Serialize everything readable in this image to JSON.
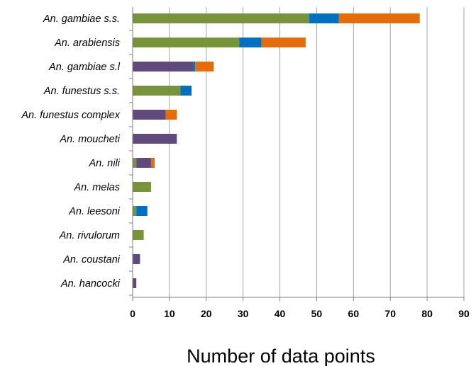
{
  "chart_data": {
    "type": "bar",
    "orientation": "horizontal",
    "stacked": true,
    "title": "",
    "xlabel": "Number of data points",
    "ylabel": "",
    "xlim": [
      0,
      90
    ],
    "x_ticks": [
      0,
      10,
      20,
      30,
      40,
      50,
      60,
      70,
      80,
      90
    ],
    "grid": "vertical gridlines",
    "legend": "none",
    "categories": [
      "An. gambiae s.s.",
      "An. arabiensis",
      "An. gambiae s.l",
      "An. funestus s.s.",
      "An. funestus complex",
      "An. moucheti",
      "An. nili",
      "An. melas",
      "An. leesoni",
      "An. rivulorum",
      "An. coustani",
      "An. hancocki"
    ],
    "series": [
      {
        "color": "#77933c",
        "values": [
          48,
          29,
          0,
          13,
          0,
          0,
          1,
          5,
          1,
          3,
          0,
          0
        ]
      },
      {
        "color": "#604a7b",
        "values": [
          0,
          0,
          16.5,
          0,
          9,
          12,
          4,
          0,
          0,
          0,
          2,
          1
        ]
      },
      {
        "color": "#0070c0",
        "values": [
          8,
          6,
          0.5,
          3,
          0,
          0,
          0,
          0,
          3,
          0,
          0,
          0
        ]
      },
      {
        "color": "#e46c0a",
        "values": [
          22,
          12,
          5,
          0,
          3,
          0,
          1,
          0,
          0,
          0,
          0,
          0
        ]
      }
    ]
  }
}
